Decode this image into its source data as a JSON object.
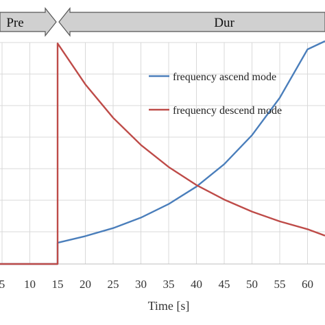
{
  "chart_data": {
    "type": "line",
    "xlabel": "Time [s]",
    "ylabel": "",
    "xlim": [
      5,
      65
    ],
    "ylim": [
      0,
      100
    ],
    "x_ticks": [
      5,
      10,
      15,
      20,
      25,
      30,
      35,
      40,
      45,
      50,
      55,
      60
    ],
    "x_tick_labels": [
      "5",
      "10",
      "15",
      "20",
      "25",
      "30",
      "35",
      "40",
      "45",
      "50",
      "55",
      "60"
    ],
    "grid": true,
    "legend_position": "top-right",
    "phases": [
      {
        "label": "Pre",
        "x_start": 5,
        "x_end": 15
      },
      {
        "label": "Dur",
        "x_start": 15,
        "x_end": 65
      }
    ],
    "series": [
      {
        "name": "frequency ascend mode",
        "color": "#4a7ebb",
        "x": [
          0,
          15,
          15,
          20,
          25,
          30,
          35,
          40,
          45,
          50,
          55,
          60,
          65
        ],
        "y": [
          0,
          0,
          9.5,
          12.5,
          16.1,
          20.8,
          26.9,
          34.7,
          44.8,
          57.8,
          74.6,
          96.3,
          100
        ]
      },
      {
        "name": "frequency descend mode",
        "color": "#be4b48",
        "x": [
          0,
          15,
          15,
          20,
          25,
          30,
          35,
          40,
          45,
          50,
          55,
          60,
          65
        ],
        "y": [
          0,
          0,
          99,
          80.6,
          65.6,
          53.4,
          43.5,
          35.4,
          28.9,
          23.5,
          19.1,
          15.6,
          12.7
        ]
      }
    ]
  },
  "colors": {
    "ascend": "#4a7ebb",
    "descend": "#be4b48",
    "grid": "#d9d9d9",
    "phase_fill": "#d0d0d0"
  }
}
